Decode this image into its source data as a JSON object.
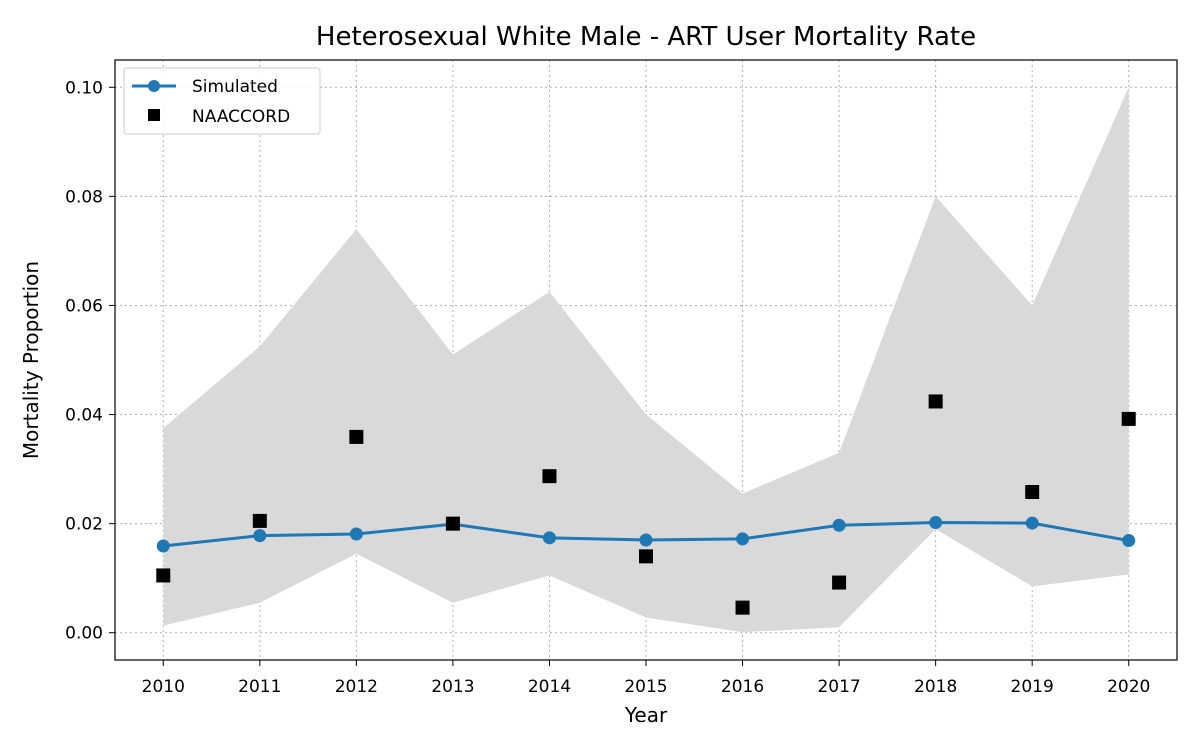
{
  "chart_data": {
    "type": "line",
    "title": "Heterosexual White Male - ART User Mortality Rate",
    "xlabel": "Year",
    "ylabel": "Mortality Proportion",
    "x": [
      2010,
      2011,
      2012,
      2013,
      2014,
      2015,
      2016,
      2017,
      2018,
      2019,
      2020
    ],
    "xlim": [
      2009.5,
      2020.5
    ],
    "ylim": [
      -0.005,
      0.105
    ],
    "yticks": [
      "0.00",
      "0.02",
      "0.04",
      "0.06",
      "0.08",
      "0.10"
    ],
    "grid": true,
    "legend_position": "top-left",
    "band": {
      "lower": [
        0.0013,
        0.0055,
        0.0145,
        0.0055,
        0.0105,
        0.0028,
        0.0001,
        0.001,
        0.019,
        0.0085,
        0.0107
      ],
      "upper": [
        0.0375,
        0.0525,
        0.074,
        0.051,
        0.0625,
        0.04,
        0.0255,
        0.033,
        0.08,
        0.06,
        0.1
      ],
      "color": "#d9d9d9"
    },
    "series": [
      {
        "name": "Simulated",
        "style": "line-circle",
        "color": "#1f77b4",
        "values": [
          0.0159,
          0.0178,
          0.0181,
          0.0199,
          0.0174,
          0.017,
          0.0172,
          0.0197,
          0.0202,
          0.0201,
          0.0169
        ]
      },
      {
        "name": "NAACCORD",
        "style": "square-marker",
        "color": "#000000",
        "values": [
          0.0105,
          0.0205,
          0.0359,
          0.02,
          0.0287,
          0.014,
          0.0046,
          0.0092,
          0.0424,
          0.0258,
          0.0392
        ]
      }
    ]
  }
}
